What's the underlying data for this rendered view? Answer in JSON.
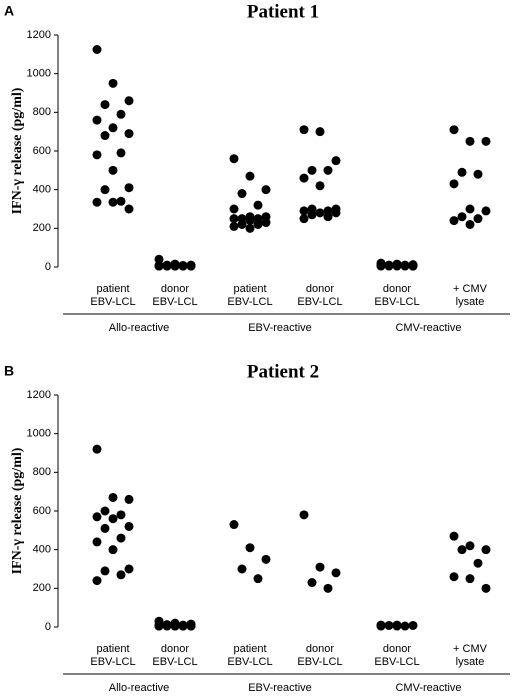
{
  "chart_data": [
    {
      "type": "strip",
      "panel_label": "A",
      "title": "Patient 1",
      "ylabel": "IFN-γ release (pg/ml)",
      "ylim": [
        0,
        1200
      ],
      "yticks": [
        0,
        200,
        400,
        600,
        800,
        1000,
        1200
      ],
      "color": "#000000",
      "categories": [
        [
          "patient",
          "EBV-LCL"
        ],
        [
          "donor",
          "EBV-LCL"
        ],
        [
          "patient",
          "EBV-LCL"
        ],
        [
          "donor",
          "EBV-LCL"
        ],
        [
          "donor",
          "EBV-LCL"
        ],
        [
          "+ CMV",
          "lysate"
        ]
      ],
      "groups": [
        "Allo-reactive",
        "EBV-reactive",
        "CMV-reactive"
      ],
      "values": [
        [
          1125,
          950,
          860,
          840,
          790,
          760,
          720,
          690,
          680,
          590,
          580,
          500,
          410,
          400,
          340,
          335,
          335,
          300
        ],
        [
          40,
          15,
          10,
          10,
          8,
          8,
          5,
          5,
          5,
          5,
          5,
          5,
          5,
          5,
          5,
          5
        ],
        [
          560,
          470,
          400,
          380,
          320,
          300,
          260,
          260,
          250,
          250,
          250,
          240,
          230,
          220,
          220,
          210,
          200
        ],
        [
          710,
          700,
          550,
          500,
          500,
          460,
          420,
          300,
          300,
          290,
          290,
          280,
          280,
          270,
          260,
          250
        ],
        [
          20,
          15,
          12,
          10,
          10,
          8,
          8,
          5,
          5,
          5,
          5,
          5,
          5
        ],
        [
          710,
          650,
          650,
          490,
          480,
          430,
          300,
          290,
          260,
          250,
          240,
          220
        ]
      ]
    },
    {
      "type": "strip",
      "panel_label": "B",
      "title": "Patient 2",
      "ylabel": "IFN-γ release (pg/ml)",
      "ylim": [
        0,
        1200
      ],
      "yticks": [
        0,
        200,
        400,
        600,
        800,
        1000,
        1200
      ],
      "color": "#000000",
      "categories": [
        [
          "patient",
          "EBV-LCL"
        ],
        [
          "donor",
          "EBV-LCL"
        ],
        [
          "patient",
          "EBV-LCL"
        ],
        [
          "donor",
          "EBV-LCL"
        ],
        [
          "donor",
          "EBV-LCL"
        ],
        [
          "+ CMV",
          "lysate"
        ]
      ],
      "groups": [
        "Allo-reactive",
        "EBV-reactive",
        "CMV-reactive"
      ],
      "values": [
        [
          920,
          670,
          660,
          600,
          580,
          570,
          560,
          520,
          510,
          460,
          440,
          400,
          300,
          290,
          270,
          240
        ],
        [
          30,
          20,
          15,
          12,
          10,
          10,
          8,
          8,
          8,
          5,
          5,
          5,
          5,
          5,
          5,
          5,
          5,
          5
        ],
        [
          530,
          410,
          350,
          300,
          250
        ],
        [
          580,
          310,
          280,
          230,
          200
        ],
        [
          10,
          10,
          8,
          8,
          5,
          5,
          5
        ],
        [
          470,
          420,
          400,
          400,
          330,
          260,
          250,
          200
        ]
      ]
    }
  ]
}
